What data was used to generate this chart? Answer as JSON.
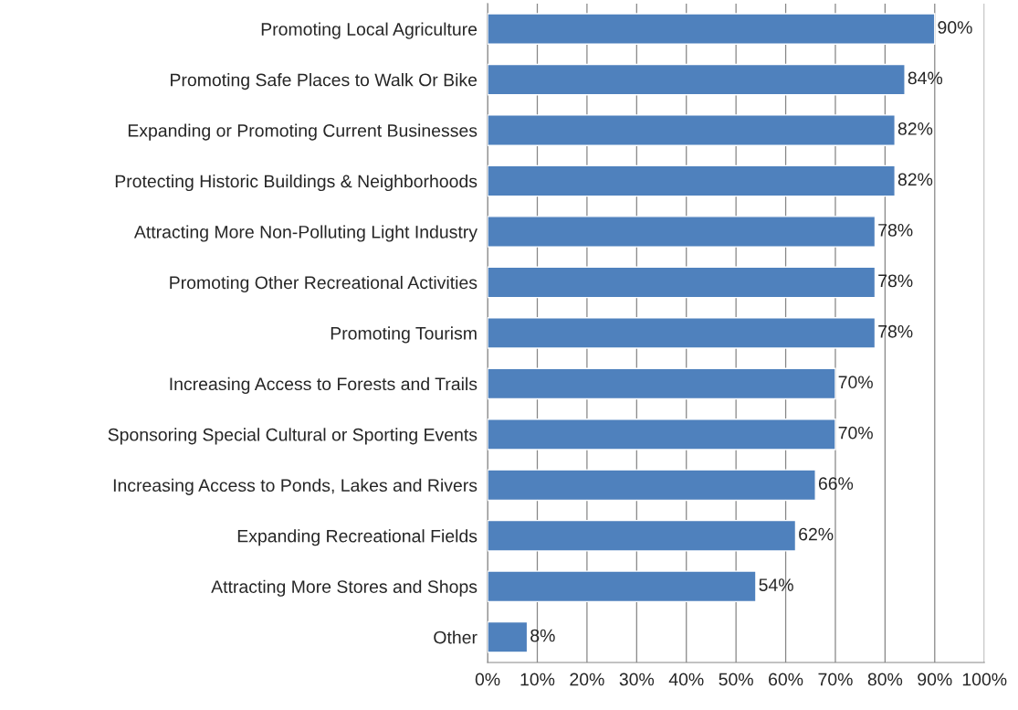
{
  "chart_data": {
    "type": "bar",
    "orientation": "horizontal",
    "categories": [
      "Promoting Local Agriculture",
      "Promoting Safe Places to Walk Or Bike",
      "Expanding or Promoting Current Businesses",
      "Protecting Historic Buildings & Neighborhoods",
      "Attracting More Non-Polluting Light Industry",
      "Promoting Other Recreational Activities",
      "Promoting Tourism",
      "Increasing Access to Forests and Trails",
      "Sponsoring Special Cultural or Sporting Events",
      "Increasing Access to Ponds, Lakes and Rivers",
      "Expanding Recreational Fields",
      "Attracting More Stores and Shops",
      "Other"
    ],
    "values": [
      90,
      84,
      82,
      82,
      78,
      78,
      78,
      70,
      70,
      66,
      62,
      54,
      8
    ],
    "value_labels": [
      "90%",
      "84%",
      "82%",
      "82%",
      "78%",
      "78%",
      "78%",
      "70%",
      "70%",
      "66%",
      "62%",
      "54%",
      "8%"
    ],
    "color": "#4f81bd",
    "xlim": [
      0,
      100
    ],
    "xticks": [
      {
        "value": 0,
        "label": "0%"
      },
      {
        "value": 10,
        "label": "10%"
      },
      {
        "value": 20,
        "label": "20%"
      },
      {
        "value": 30,
        "label": "30%"
      },
      {
        "value": 40,
        "label": "40%"
      },
      {
        "value": 50,
        "label": "50%"
      },
      {
        "value": 60,
        "label": "60%"
      },
      {
        "value": 70,
        "label": "70%"
      },
      {
        "value": 80,
        "label": "80%"
      },
      {
        "value": 90,
        "label": "90%"
      },
      {
        "value": 100,
        "label": "100%"
      }
    ],
    "grid": "x"
  }
}
